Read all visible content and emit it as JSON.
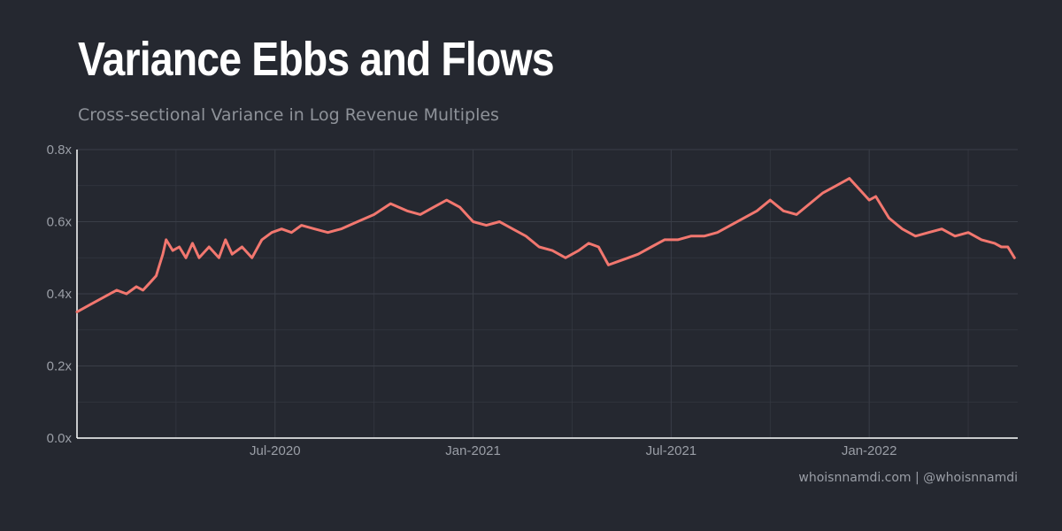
{
  "title": "Variance Ebbs and Flows",
  "subtitle": "Cross-sectional Variance in Log Revenue Multiples",
  "credit": "whoisnnamdi.com | @whoisnnamdi",
  "colors": {
    "background": "#252830",
    "line": "#f2776f",
    "grid": "#3a3e47",
    "axis": "#ffffff",
    "tick_text": "#9a9ea6"
  },
  "chart_data": {
    "type": "line",
    "title": "Variance Ebbs and Flows",
    "subtitle": "Cross-sectional Variance in Log Revenue Multiples",
    "xlabel": "",
    "ylabel": "",
    "x_unit": "months since 2020-01-01",
    "xlim": [
      0,
      28.5
    ],
    "ylim": [
      0,
      0.8
    ],
    "y_ticks": [
      {
        "value": 0.0,
        "label": "0.0x"
      },
      {
        "value": 0.2,
        "label": "0.2x"
      },
      {
        "value": 0.4,
        "label": "0.4x"
      },
      {
        "value": 0.6,
        "label": "0.6x"
      },
      {
        "value": 0.8,
        "label": "0.8x"
      }
    ],
    "x_ticks": [
      {
        "value": 6,
        "label": "Jul-2020"
      },
      {
        "value": 12,
        "label": "Jan-2021"
      },
      {
        "value": 18,
        "label": "Jul-2021"
      },
      {
        "value": 24,
        "label": "Jan-2022"
      }
    ],
    "x_minor_ticks": [
      3,
      9,
      15,
      21,
      27
    ],
    "series": [
      {
        "name": "Cross-sectional Variance",
        "x": [
          0,
          0.4,
          0.8,
          1.2,
          1.5,
          1.8,
          2.0,
          2.2,
          2.4,
          2.5,
          2.6,
          2.7,
          2.9,
          3.1,
          3.3,
          3.5,
          3.7,
          4.0,
          4.3,
          4.5,
          4.7,
          5.0,
          5.3,
          5.6,
          5.9,
          6.2,
          6.5,
          6.8,
          7.2,
          7.6,
          8.0,
          8.5,
          9.0,
          9.5,
          10.0,
          10.4,
          10.8,
          11.2,
          11.6,
          12.0,
          12.4,
          12.8,
          13.2,
          13.6,
          14.0,
          14.4,
          14.8,
          15.2,
          15.5,
          15.8,
          16.1,
          16.4,
          16.7,
          17.0,
          17.4,
          17.8,
          18.2,
          18.6,
          19.0,
          19.4,
          19.8,
          20.2,
          20.6,
          21.0,
          21.4,
          21.8,
          22.2,
          22.6,
          23.0,
          23.4,
          23.8,
          24.0,
          24.2,
          24.6,
          25.0,
          25.4,
          25.8,
          26.2,
          26.6,
          27.0,
          27.4,
          27.8,
          28.0,
          28.2,
          28.4
        ],
        "y": [
          0.35,
          0.37,
          0.39,
          0.41,
          0.4,
          0.42,
          0.41,
          0.43,
          0.45,
          0.48,
          0.51,
          0.55,
          0.52,
          0.53,
          0.5,
          0.54,
          0.5,
          0.53,
          0.5,
          0.55,
          0.51,
          0.53,
          0.5,
          0.55,
          0.57,
          0.58,
          0.57,
          0.59,
          0.58,
          0.57,
          0.58,
          0.6,
          0.62,
          0.65,
          0.63,
          0.62,
          0.64,
          0.66,
          0.64,
          0.6,
          0.59,
          0.6,
          0.58,
          0.56,
          0.53,
          0.52,
          0.5,
          0.52,
          0.54,
          0.53,
          0.48,
          0.49,
          0.5,
          0.51,
          0.53,
          0.55,
          0.55,
          0.56,
          0.56,
          0.57,
          0.59,
          0.61,
          0.63,
          0.66,
          0.63,
          0.62,
          0.65,
          0.68,
          0.7,
          0.72,
          0.68,
          0.66,
          0.67,
          0.61,
          0.58,
          0.56,
          0.57,
          0.58,
          0.56,
          0.57,
          0.55,
          0.54,
          0.53,
          0.53,
          0.5
        ]
      }
    ]
  }
}
